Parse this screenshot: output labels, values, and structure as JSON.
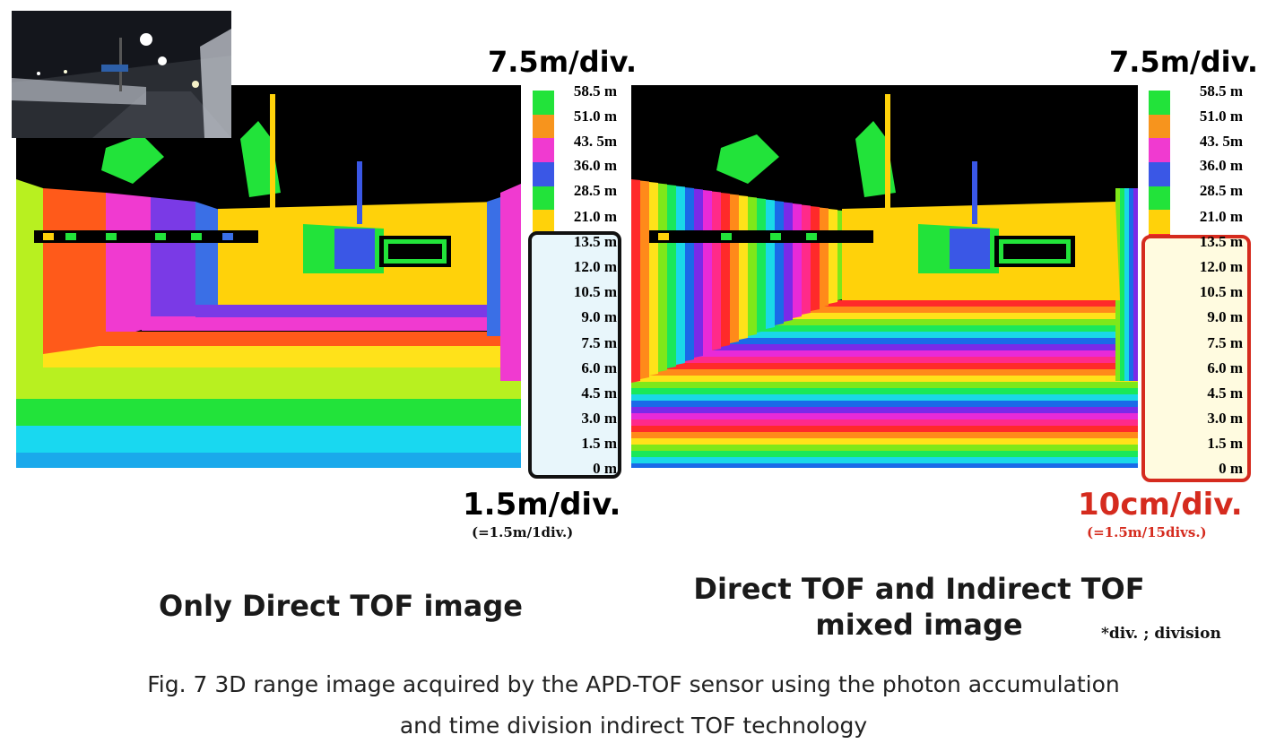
{
  "left_panel": {
    "top_scale": "7.5m/div.",
    "bottom_scale": "1.5m/div.",
    "bottom_scale_note": "(=1.5m/1div.)",
    "title": "Only Direct TOF image",
    "scale_labels": [
      "58.5 m",
      "51.0 m",
      "43. 5m",
      "36.0 m",
      "28.5 m",
      "21.0 m",
      "13.5 m",
      "12.0 m",
      "10.5 m",
      "9.0 m",
      "7.5 m",
      "6.0 m",
      "4.5 m",
      "3.0 m",
      "1.5 m",
      "0 m"
    ],
    "upper_colors": [
      "#22e33a",
      "#f7941d",
      "#f03ad0",
      "#3a57e6",
      "#22e33a",
      "#ffd20a"
    ],
    "lower_colors": [
      "#ffd20a",
      "#3a6fe6",
      "#7a3ae6",
      "#f03ad0",
      "#ff5a1a",
      "#b8f020",
      "#22e33a",
      "#19d8f0",
      "#2a2ad8",
      "#f03ad0"
    ]
  },
  "right_panel": {
    "top_scale": "7.5m/div.",
    "bottom_scale": "10cm/div.",
    "bottom_scale_note": "(=1.5m/15divs.)",
    "title_line1": "Direct TOF and Indirect TOF",
    "title_line2": "mixed image",
    "scale_labels": [
      "58.5 m",
      "51.0 m",
      "43. 5m",
      "36.0 m",
      "28.5 m",
      "21.0 m",
      "13.5 m",
      "12.0 m",
      "10.5 m",
      "9.0 m",
      "7.5 m",
      "6.0 m",
      "4.5 m",
      "3.0 m",
      "1.5 m",
      "0 m"
    ],
    "accent_color": "#d52b1e"
  },
  "footnote": "*div. ; division",
  "caption_line1": "Fig. 7 3D range image acquired by the APD-TOF sensor using the photon accumulation",
  "caption_line2": "and time division indirect TOF technology",
  "rainbow": [
    "#ff2a2a",
    "#ff8a1a",
    "#ffe21a",
    "#7ee81a",
    "#1ae85a",
    "#1ad8e8",
    "#1a6ae8",
    "#7a2ae8",
    "#e82ad8",
    "#ff2a8a"
  ]
}
